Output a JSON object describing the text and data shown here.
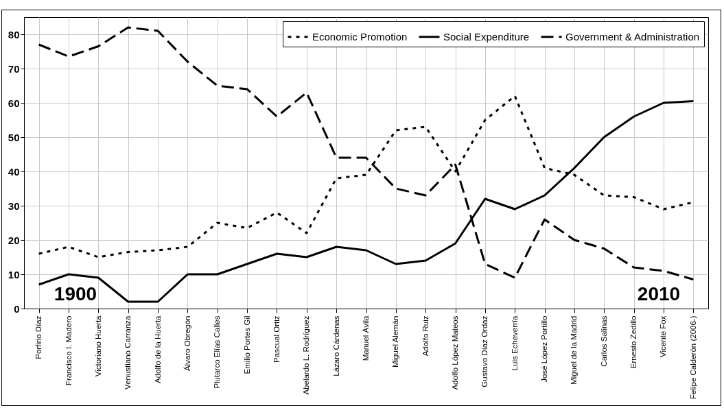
{
  "chart_data": {
    "type": "line",
    "categories": [
      "Porfirio Díaz",
      "Francisco I. Madero",
      "Victoriano Huerta",
      "Venustiano Carranza",
      "Adolfo de la Huerta",
      "Álvaro Obregón",
      "Plutarco Elías Calles",
      "Emilio Portes Gil",
      "Pascual Ortiz",
      "Abelardo L. Rodríguez",
      "Lázaro Cárdenas",
      "Manuel Ávila",
      "Miguel Alemán",
      "Adolfo Ruiz",
      "Adolfo López Mateos",
      "Gustavo Díaz Ordaz",
      "Luis Echeverría",
      "José López Portillo",
      "Miguel de la Madrid",
      "Carlos Salinas",
      "Ernesto Zedillo",
      "Vicente Fox",
      "Felipe Calderón (2006-)"
    ],
    "series": [
      {
        "name": "Economic Promotion",
        "color": "#000000",
        "line_style": "dotted",
        "values": [
          16,
          18,
          15,
          16.5,
          17,
          18,
          25,
          23.5,
          28,
          22,
          38,
          39,
          52,
          53,
          40,
          55,
          62,
          41,
          39,
          33,
          32.5,
          29,
          31
        ]
      },
      {
        "name": "Social Expenditure",
        "color": "#000000",
        "line_style": "solid",
        "values": [
          7,
          10,
          9,
          2,
          2,
          10,
          10,
          13,
          16,
          15,
          18,
          17,
          13,
          14,
          19,
          32,
          29,
          33,
          41,
          50,
          56,
          60,
          60.5
        ]
      },
      {
        "name": "Government & Administration",
        "color": "#000000",
        "line_style": "dashed",
        "values": [
          77,
          73.5,
          76.5,
          82,
          81,
          72,
          65,
          64,
          56,
          63,
          44,
          44,
          35,
          33,
          42,
          13,
          9,
          26,
          20,
          17.5,
          12,
          11,
          8.5
        ]
      }
    ],
    "ylim": [
      0,
      85
    ],
    "yticks": [
      0,
      10,
      20,
      30,
      40,
      50,
      60,
      70,
      80
    ],
    "grid": true,
    "legend": "top right",
    "marker": "none",
    "annotations": [
      "1900",
      "2010"
    ]
  }
}
